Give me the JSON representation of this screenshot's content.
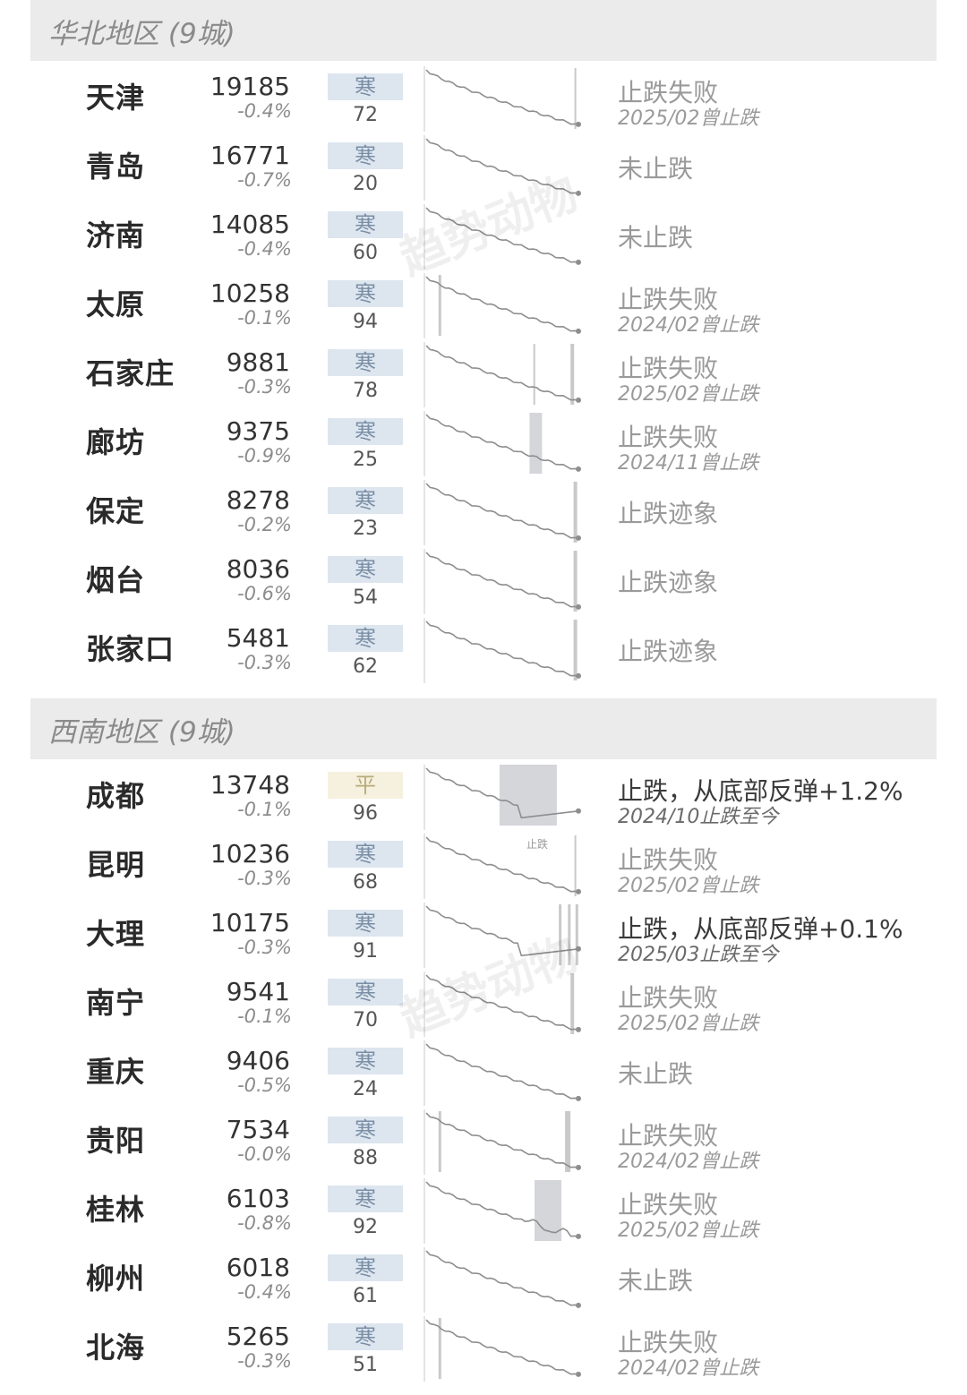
{
  "sections": [
    {
      "title": "华北地区 (9城)",
      "rows": [
        {
          "city": "天津",
          "price": "19185",
          "change": "-0.4%",
          "season": "寒",
          "score": "72",
          "status": "止跌失败",
          "sub": "2025/02曾止跌"
        },
        {
          "city": "青岛",
          "price": "16771",
          "change": "-0.7%",
          "season": "寒",
          "score": "20",
          "status": "未止跌",
          "sub": ""
        },
        {
          "city": "济南",
          "price": "14085",
          "change": "-0.4%",
          "season": "寒",
          "score": "60",
          "status": "未止跌",
          "sub": ""
        },
        {
          "city": "太原",
          "price": "10258",
          "change": "-0.1%",
          "season": "寒",
          "score": "94",
          "status": "止跌失败",
          "sub": "2024/02曾止跌"
        },
        {
          "city": "石家庄",
          "price": "9881",
          "change": "-0.3%",
          "season": "寒",
          "score": "78",
          "status": "止跌失败",
          "sub": "2025/02曾止跌"
        },
        {
          "city": "廊坊",
          "price": "9375",
          "change": "-0.9%",
          "season": "寒",
          "score": "25",
          "status": "止跌失败",
          "sub": "2024/11曾止跌"
        },
        {
          "city": "保定",
          "price": "8278",
          "change": "-0.2%",
          "season": "寒",
          "score": "23",
          "status": "止跌迹象",
          "sub": ""
        },
        {
          "city": "烟台",
          "price": "8036",
          "change": "-0.6%",
          "season": "寒",
          "score": "54",
          "status": "止跌迹象",
          "sub": ""
        },
        {
          "city": "张家口",
          "price": "5481",
          "change": "-0.3%",
          "season": "寒",
          "score": "62",
          "status": "止跌迹象",
          "sub": ""
        }
      ]
    },
    {
      "title": "西南地区 (9城)",
      "rows": [
        {
          "city": "成都",
          "price": "13748",
          "change": "-0.1%",
          "season": "平",
          "score": "96",
          "status": "止跌，从底部反弹+1.2%",
          "sub": "2024/10止跌至今",
          "note": "止跌"
        },
        {
          "city": "昆明",
          "price": "10236",
          "change": "-0.3%",
          "season": "寒",
          "score": "68",
          "status": "止跌失败",
          "sub": "2025/02曾止跌"
        },
        {
          "city": "大理",
          "price": "10175",
          "change": "-0.3%",
          "season": "寒",
          "score": "91",
          "status": "止跌，从底部反弹+0.1%",
          "sub": "2025/03止跌至今"
        },
        {
          "city": "南宁",
          "price": "9541",
          "change": "-0.1%",
          "season": "寒",
          "score": "70",
          "status": "止跌失败",
          "sub": "2025/02曾止跌"
        },
        {
          "city": "重庆",
          "price": "9406",
          "change": "-0.5%",
          "season": "寒",
          "score": "24",
          "status": "未止跌",
          "sub": ""
        },
        {
          "city": "贵阳",
          "price": "7534",
          "change": "-0.0%",
          "season": "寒",
          "score": "88",
          "status": "止跌失败",
          "sub": "2024/02曾止跌"
        },
        {
          "city": "桂林",
          "price": "6103",
          "change": "-0.8%",
          "season": "寒",
          "score": "92",
          "status": "止跌失败",
          "sub": "2025/02曾止跌"
        },
        {
          "city": "柳州",
          "price": "6018",
          "change": "-0.4%",
          "season": "寒",
          "score": "61",
          "status": "未止跌",
          "sub": ""
        },
        {
          "city": "北海",
          "price": "5265",
          "change": "-0.3%",
          "season": "寒",
          "score": "51",
          "status": "止跌失败",
          "sub": "2024/02曾止跌"
        }
      ]
    }
  ],
  "watermark": "趋势动物",
  "colors": {
    "cold_box": "#dde6ef",
    "warm_box": "#f6f1de",
    "header_bg": "#ebebeb"
  },
  "chart_data": {
    "type": "table",
    "columns": [
      "city",
      "price",
      "change",
      "season",
      "score",
      "status",
      "sub"
    ]
  }
}
